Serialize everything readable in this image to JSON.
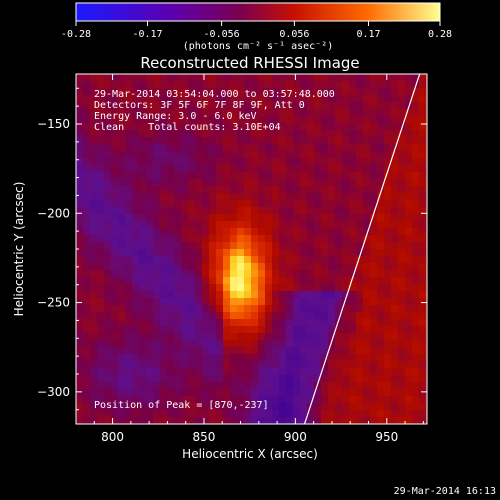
{
  "colorbar": {
    "ticks": [
      "-0.28",
      "-0.17",
      "-0.056",
      "0.056",
      "0.17",
      "0.28"
    ],
    "range": [
      -0.28,
      0.28
    ],
    "units_label": "(photons cm⁻² s⁻¹ asec⁻²)",
    "colors": [
      "#1a1aff",
      "#5a00b4",
      "#7a0050",
      "#c81000",
      "#ff6a00",
      "#ffff90"
    ]
  },
  "chart_data": {
    "type": "heatmap",
    "title": "Reconstructed RHESSI Image",
    "xlabel": "Heliocentric X (arcsec)",
    "ylabel": "Heliocentric Y (arcsec)",
    "xlim": [
      780,
      972
    ],
    "ylim": [
      -318,
      -122
    ],
    "xticks": [
      800,
      850,
      900,
      950
    ],
    "yticks": [
      -150,
      -200,
      -250,
      -300
    ],
    "annotations": [
      "29-Mar-2014 03:54:04.000 to 03:57:48.000",
      "Detectors: 3F 5F 6F 7F 8F 9F, Att 0",
      "Energy Range: 3.0 - 6.0 keV",
      "Clean    Total counts: 3.10E+04"
    ],
    "peak_label": "Position of Peak = [870,-237]",
    "peak": [
      870,
      -237
    ],
    "limb_arc": {
      "x_at_top": 968,
      "x_at_bottom": 905
    }
  },
  "timestamp": "29-Mar-2014 16:13"
}
